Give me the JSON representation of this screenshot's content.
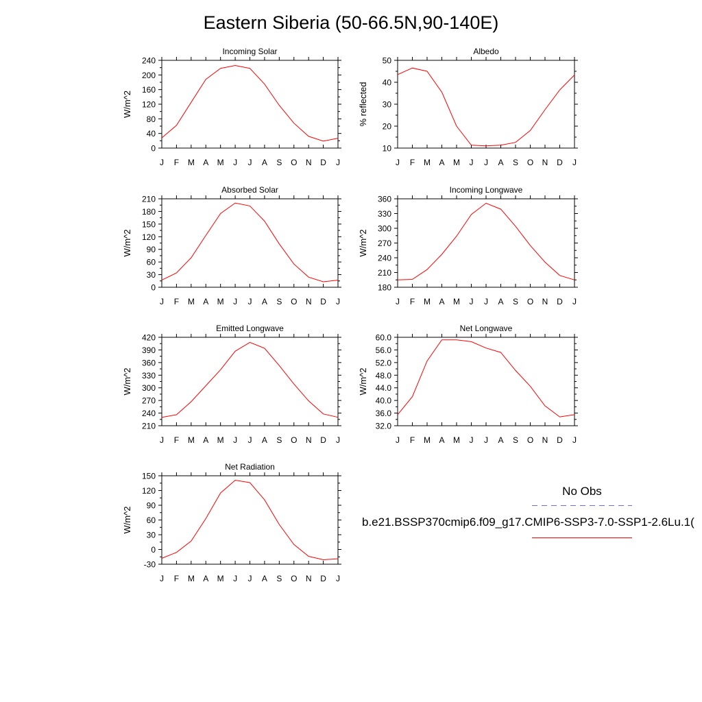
{
  "page": {
    "title": "Eastern Siberia (50-66.5N,90-140E)"
  },
  "colors": {
    "model_line": "#ff0000",
    "obs_line": "#6a6aff",
    "axis": "#000000"
  },
  "legend": {
    "obs_label": "No Obs",
    "model_label": "b.e21.BSSP370cmip6.f09_g17.CMIP6-SSP3-7.0-SSP1-2.6Lu.1("
  },
  "chart_data": [
    {
      "type": "line",
      "title": "Incoming Solar",
      "ylabel": "W/m^2",
      "categories": [
        "J",
        "F",
        "M",
        "A",
        "M",
        "J",
        "J",
        "A",
        "S",
        "O",
        "N",
        "D",
        "J"
      ],
      "ylim": [
        0,
        240
      ],
      "yticks": [
        0,
        40,
        80,
        120,
        160,
        200,
        240
      ],
      "ytick_labels": [
        "0",
        "40",
        "80",
        "120",
        "160",
        "200",
        "240"
      ],
      "series": [
        {
          "values": [
            28,
            62,
            125,
            188,
            218,
            226,
            218,
            175,
            117,
            68,
            32,
            19,
            27
          ]
        }
      ]
    },
    {
      "type": "line",
      "title": "Albedo",
      "ylabel": "% reflected",
      "categories": [
        "J",
        "F",
        "M",
        "A",
        "M",
        "J",
        "J",
        "A",
        "S",
        "O",
        "N",
        "D",
        "J"
      ],
      "ylim": [
        10,
        50
      ],
      "yticks": [
        10,
        20,
        30,
        40,
        50
      ],
      "ytick_labels": [
        "10",
        "20",
        "30",
        "40",
        "50"
      ],
      "series": [
        {
          "values": [
            43.5,
            46.5,
            45,
            35.5,
            20,
            11.3,
            11,
            11.3,
            12.6,
            18,
            27.5,
            36.5,
            43.3
          ]
        }
      ]
    },
    {
      "type": "line",
      "title": "Absorbed Solar",
      "ylabel": "W/m^2",
      "categories": [
        "J",
        "F",
        "M",
        "A",
        "M",
        "J",
        "J",
        "A",
        "S",
        "O",
        "N",
        "D",
        "J"
      ],
      "ylim": [
        0,
        210
      ],
      "yticks": [
        0,
        30,
        60,
        90,
        120,
        150,
        180,
        210
      ],
      "ytick_labels": [
        "0",
        "30",
        "60",
        "90",
        "120",
        "150",
        "180",
        "210"
      ],
      "series": [
        {
          "values": [
            17,
            34,
            70,
            123,
            175,
            200,
            193,
            157,
            103,
            55,
            24,
            13,
            17
          ]
        }
      ]
    },
    {
      "type": "line",
      "title": "Incoming Longwave",
      "ylabel": "W/m^2",
      "categories": [
        "J",
        "F",
        "M",
        "A",
        "M",
        "J",
        "J",
        "A",
        "S",
        "O",
        "N",
        "D",
        "J"
      ],
      "ylim": [
        180,
        360
      ],
      "yticks": [
        180,
        210,
        240,
        270,
        300,
        330,
        360
      ],
      "ytick_labels": [
        "180",
        "210",
        "240",
        "270",
        "300",
        "330",
        "360"
      ],
      "series": [
        {
          "values": [
            195,
            196,
            216,
            247,
            284,
            328,
            351,
            339,
            304,
            265,
            231,
            204,
            195
          ]
        }
      ]
    },
    {
      "type": "line",
      "title": "Emitted Longwave",
      "ylabel": "W/m^2",
      "categories": [
        "J",
        "F",
        "M",
        "A",
        "M",
        "J",
        "J",
        "A",
        "S",
        "O",
        "N",
        "D",
        "J"
      ],
      "ylim": [
        210,
        420
      ],
      "yticks": [
        210,
        240,
        270,
        300,
        330,
        360,
        390,
        420
      ],
      "ytick_labels": [
        "210",
        "240",
        "270",
        "300",
        "330",
        "360",
        "390",
        "420"
      ],
      "series": [
        {
          "values": [
            230,
            236,
            267,
            305,
            343,
            387,
            408,
            394,
            353,
            309,
            269,
            238,
            230
          ]
        }
      ]
    },
    {
      "type": "line",
      "title": "Net Longwave",
      "ylabel": "W/m^2",
      "categories": [
        "J",
        "F",
        "M",
        "A",
        "M",
        "J",
        "J",
        "A",
        "S",
        "O",
        "N",
        "D",
        "J"
      ],
      "ylim": [
        32,
        60
      ],
      "yticks": [
        32,
        36,
        40,
        44,
        48,
        52,
        56,
        60
      ],
      "ytick_labels": [
        "32.0",
        "36.0",
        "40.0",
        "44.0",
        "48.0",
        "52.0",
        "56.0",
        "60.0"
      ],
      "series": [
        {
          "values": [
            35.5,
            41.2,
            52.5,
            59.2,
            59.2,
            58.6,
            56.6,
            55.2,
            49.5,
            44.5,
            38.3,
            34.8,
            35.5
          ]
        }
      ]
    },
    {
      "type": "line",
      "title": "Net Radiation",
      "ylabel": "W/m^2",
      "categories": [
        "J",
        "F",
        "M",
        "A",
        "M",
        "J",
        "J",
        "A",
        "S",
        "O",
        "N",
        "D",
        "J"
      ],
      "ylim": [
        -30,
        150
      ],
      "yticks": [
        -30,
        0,
        30,
        60,
        90,
        120,
        150
      ],
      "ytick_labels": [
        "-30",
        "0",
        "30",
        "60",
        "90",
        "120",
        "150"
      ],
      "series": [
        {
          "values": [
            -18,
            -6,
            17,
            63,
            115,
            141,
            136,
            101,
            51,
            10,
            -14,
            -21,
            -19
          ]
        }
      ]
    }
  ]
}
